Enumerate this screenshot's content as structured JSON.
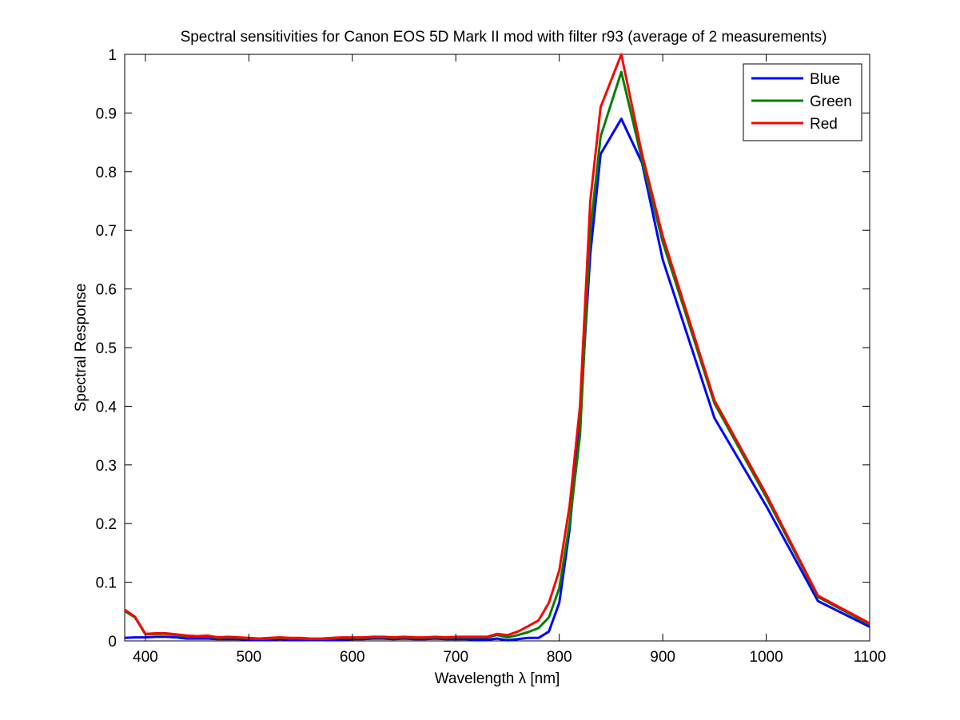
{
  "chart_data": {
    "type": "line",
    "title": "Spectral sensitivities for Canon EOS 5D Mark II mod with filter r93 (average of 2 measurements)",
    "xlabel": "Wavelength λ [nm]",
    "ylabel": "Spectral Response",
    "xlim": [
      380,
      1100
    ],
    "ylim": [
      0,
      1
    ],
    "xticks": [
      400,
      500,
      600,
      700,
      800,
      900,
      1000,
      1100
    ],
    "yticks": [
      0,
      0.1,
      0.2,
      0.3,
      0.4,
      0.5,
      0.6,
      0.7,
      0.8,
      0.9,
      1
    ],
    "ytick_labels": [
      "0",
      "0.1",
      "0.2",
      "0.3",
      "0.4",
      "0.5",
      "0.6",
      "0.7",
      "0.8",
      "0.9",
      "1"
    ],
    "grid": false,
    "legend_position": "top-right",
    "series": [
      {
        "name": "Blue",
        "color": "#0000ff",
        "x": [
          380,
          390,
          400,
          410,
          420,
          430,
          440,
          450,
          460,
          470,
          480,
          490,
          500,
          510,
          520,
          530,
          540,
          550,
          560,
          570,
          580,
          590,
          600,
          610,
          620,
          630,
          640,
          650,
          660,
          670,
          680,
          690,
          700,
          710,
          720,
          730,
          740,
          750,
          760,
          770,
          780,
          790,
          800,
          810,
          820,
          830,
          840,
          860,
          880,
          900,
          950,
          1000,
          1050,
          1100
        ],
        "y": [
          0.005,
          0.006,
          0.006,
          0.007,
          0.007,
          0.006,
          0.004,
          0.004,
          0.004,
          0.003,
          0.003,
          0.003,
          0.002,
          0.002,
          0.002,
          0.003,
          0.002,
          0.002,
          0.002,
          0.002,
          0.002,
          0.002,
          0.003,
          0.003,
          0.004,
          0.004,
          0.003,
          0.004,
          0.003,
          0.003,
          0.004,
          0.003,
          0.003,
          0.003,
          0.002,
          0.002,
          0.004,
          0.001,
          0.003,
          0.005,
          0.005,
          0.016,
          0.065,
          0.19,
          0.38,
          0.66,
          0.83,
          0.89,
          0.815,
          0.65,
          0.38,
          0.23,
          0.068,
          0.024
        ]
      },
      {
        "name": "Green",
        "color": "#008000",
        "x": [
          380,
          390,
          400,
          410,
          420,
          430,
          440,
          450,
          460,
          470,
          480,
          490,
          500,
          510,
          520,
          530,
          540,
          550,
          560,
          570,
          580,
          590,
          600,
          610,
          620,
          630,
          640,
          650,
          660,
          670,
          680,
          690,
          700,
          710,
          720,
          730,
          740,
          750,
          760,
          770,
          780,
          790,
          800,
          810,
          820,
          830,
          840,
          860,
          880,
          900,
          950,
          1000,
          1050,
          1100
        ],
        "y": [
          0.051,
          0.04,
          0.011,
          0.012,
          0.012,
          0.01,
          0.008,
          0.007,
          0.008,
          0.005,
          0.006,
          0.005,
          0.004,
          0.003,
          0.004,
          0.005,
          0.004,
          0.004,
          0.003,
          0.003,
          0.004,
          0.005,
          0.005,
          0.005,
          0.006,
          0.006,
          0.005,
          0.006,
          0.005,
          0.005,
          0.006,
          0.005,
          0.006,
          0.006,
          0.006,
          0.006,
          0.01,
          0.006,
          0.01,
          0.015,
          0.022,
          0.04,
          0.09,
          0.2,
          0.35,
          0.7,
          0.86,
          0.97,
          0.82,
          0.68,
          0.405,
          0.245,
          0.075,
          0.028
        ]
      },
      {
        "name": "Red",
        "color": "#ff0000",
        "x": [
          380,
          390,
          400,
          410,
          420,
          430,
          440,
          450,
          460,
          470,
          480,
          490,
          500,
          510,
          520,
          530,
          540,
          550,
          560,
          570,
          580,
          590,
          600,
          610,
          620,
          630,
          640,
          650,
          660,
          670,
          680,
          690,
          700,
          710,
          720,
          730,
          740,
          750,
          760,
          770,
          780,
          790,
          800,
          810,
          820,
          830,
          840,
          860,
          880,
          900,
          950,
          1000,
          1050,
          1100
        ],
        "y": [
          0.053,
          0.041,
          0.012,
          0.013,
          0.013,
          0.011,
          0.009,
          0.008,
          0.009,
          0.006,
          0.007,
          0.006,
          0.005,
          0.004,
          0.005,
          0.006,
          0.005,
          0.005,
          0.004,
          0.004,
          0.005,
          0.006,
          0.006,
          0.006,
          0.007,
          0.007,
          0.006,
          0.007,
          0.006,
          0.006,
          0.007,
          0.006,
          0.007,
          0.007,
          0.007,
          0.007,
          0.012,
          0.01,
          0.016,
          0.025,
          0.035,
          0.065,
          0.12,
          0.23,
          0.4,
          0.75,
          0.91,
          1.0,
          0.83,
          0.69,
          0.41,
          0.25,
          0.077,
          0.03
        ]
      }
    ]
  }
}
